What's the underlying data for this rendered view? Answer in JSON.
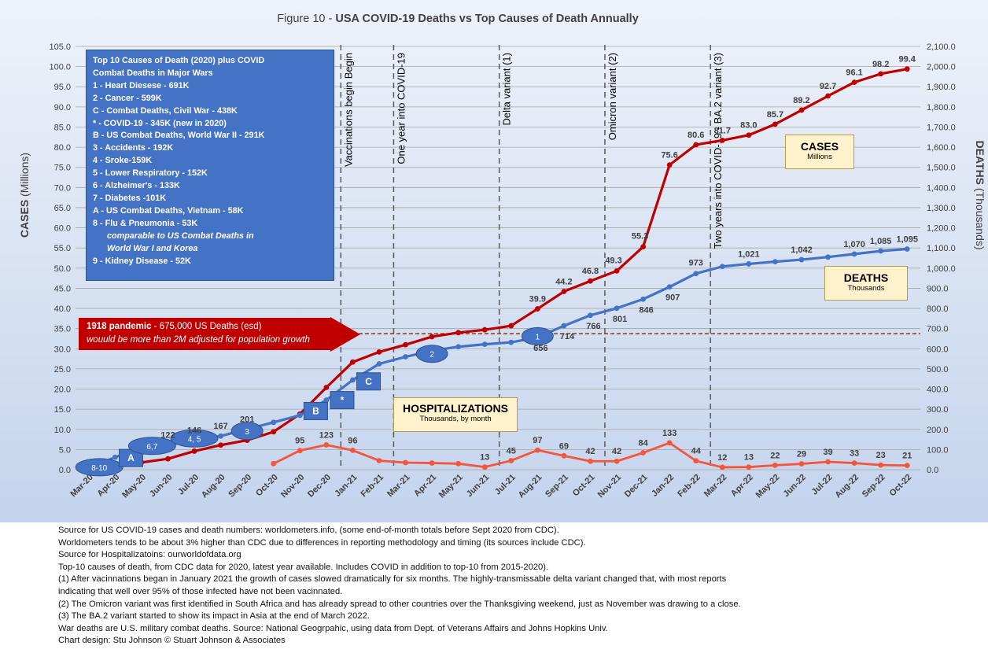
{
  "title_prefix": "Figure 10 - ",
  "title_main": "USA COVID-19 Deaths vs Top Causes of Death Annually",
  "colors": {
    "cases": "#c00000",
    "deaths": "#4472c4",
    "hosp": "#f4563c",
    "grid": "#a6a6a6",
    "bg_top": "#eef2f9",
    "bg_bottom": "#c7d6ee"
  },
  "legend_box": {
    "lines": [
      "Top 10 Causes of Death (2020) plus COVID",
      "Combat Deaths in Major Wars",
      " 1 - Heart Diesese - 691K",
      " 2 - Cancer - 599K",
      " C - Combat Deaths, Civil War - 438K",
      " * - COVID-19 - 345K  (new in 2020)",
      " B - US Combat Deaths, World War II - 291K",
      " 3 - Accidents - 192K",
      " 4 - Sroke-159K",
      " 5 - Lower Respiratory - 152K",
      " 6 - Alzheimer's - 133K",
      " 7 - Diabetes -101K",
      " A - US Combat Deaths, Vietnam - 58K",
      " 8 - Flu & Pneumonia - 53K",
      "comparable to US Combat Deaths in",
      "World War I and Korea",
      " 9 - Kidney Disease - 52K"
    ]
  },
  "pandemic_box": {
    "line1_bold": "1918 pandemic",
    "line1_rest": " - 675,000 US Deaths (esd)",
    "line2": "wouuld be more than 2M adjusted for population growth"
  },
  "callouts": {
    "cases": {
      "title": "CASES",
      "sub": "Millions"
    },
    "deaths": {
      "title": "DEATHS",
      "sub": "Thousands"
    },
    "hosp": {
      "title": "HOSPITALIZATIONS",
      "sub": "Thousands, by month"
    }
  },
  "notes": [
    "Source for US COVID-19 cases and death numbers: worldometers.info, (some end-of-month totals before Sept 2020 from CDC).",
    "Worldometers tends to be about 3% higher than CDC due to differences in reporting methodology and timing (its sources include CDC).",
    "Source for Hospitalizatoins: ourworldofdata.org",
    "Top-10 causes of death, from CDC data for 2020, latest year available.  Includes COVID in addition to top-10 from 2015-2020).",
    "(1) After vacinnations began in January 2021 the growth of cases slowed dramatically for six months. The highly-transmissable delta variant changed that, with most reports",
    "indicating that well over 95% of those infected have not been vacinnated.",
    "(2) The Omicron variant was first identified in South Africa and has already spread to other countries over the Thanksgiving weekend, just as November was drawing to a close.",
    "(3) The BA.2 variant started to show its impact in Asia at the end of March 2022.",
    "War deaths are U.S. military combat deaths.  Source: National Geogrpahic, using data from Dept. of Veterans Affairs and Johns Hopkins Univ.",
    "Chart design: Stu Johnson © Stuart Johnson & Associates"
  ],
  "chart_data": {
    "type": "line",
    "title": "Figure 10 - USA COVID-19 Deaths vs Top Causes of Death Annually",
    "categories": [
      "Mar-20",
      "Apr-20",
      "May-20",
      "Jun-20",
      "Jul-20",
      "Aug-20",
      "Sep-20",
      "Oct-20",
      "Nov-20",
      "Dec-20",
      "Jan-21",
      "Feb-21",
      "Mar-21",
      "Apr-21",
      "May-21",
      "Jun-21",
      "Jul-21",
      "Aug-21",
      "Sep-21",
      "Oct-21",
      "Nov-21",
      "Dec-21",
      "Jan-22",
      "Feb-22",
      "Mar-22",
      "Apr-22",
      "May-22",
      "Jun-22",
      "Jul-22",
      "Aug-22",
      "Sep-22",
      "Oct-22"
    ],
    "y_left": {
      "label_bold": "CASES",
      "label_rest": " (Millions)",
      "min": 0,
      "max": 105,
      "step": 5,
      "ticks": [
        "0.0",
        "5.0",
        "10.0",
        "15.0",
        "20.0",
        "25.0",
        "30.0",
        "35.0",
        "40.0",
        "45.0",
        "50.0",
        "55.0",
        "60.0",
        "65.0",
        "70.0",
        "75.0",
        "80.0",
        "85.0",
        "90.0",
        "95.0",
        "100.0",
        "105.0"
      ]
    },
    "y_right": {
      "label_bold": "DEATHS",
      "label_rest": " (Thousands)",
      "min": 0,
      "max": 2100,
      "step": 100,
      "ticks": [
        "0.0",
        "100.0",
        "200.0",
        "300.0",
        "400.0",
        "500.0",
        "600.0",
        "700.0",
        "800.0",
        "900.0",
        "1,000.0",
        "1,100.0",
        "1,200.0",
        "1,300.0",
        "1,400.0",
        "1,500.0",
        "1,600.0",
        "1,700.0",
        "1,800.0",
        "1,900.0",
        "2,000.0",
        "2,100.0"
      ]
    },
    "series": [
      {
        "name": "CASES",
        "axis": "left",
        "values": [
          0.2,
          1.1,
          1.8,
          2.7,
          4.6,
          6.1,
          7.3,
          9.4,
          13.8,
          20.4,
          26.7,
          29.2,
          31.0,
          33.0,
          34.0,
          34.7,
          35.7,
          39.9,
          44.2,
          46.8,
          49.3,
          55.3,
          75.6,
          80.6,
          81.7,
          83.0,
          85.7,
          89.2,
          92.7,
          96.1,
          98.2,
          99.4
        ],
        "labels": [
          "",
          "",
          "",
          "",
          "",
          "",
          "",
          "",
          "",
          "",
          "",
          "",
          "",
          "",
          "",
          "",
          "",
          "39.9",
          "44.2",
          "46.8",
          "49.3",
          "55.3",
          "75.6",
          "80.6",
          "81.7",
          "83.0",
          "85.7",
          "89.2",
          "92.7",
          "96.1",
          "98.2",
          "99.4"
        ]
      },
      {
        "name": "DEATHS",
        "axis": "right",
        "values": [
          6,
          62,
          108,
          122,
          146,
          167,
          201,
          235,
          270,
          345,
          445,
          525,
          560,
          590,
          610,
          622,
          632,
          656,
          714,
          766,
          801,
          846,
          907,
          973,
          1008,
          1021,
          1032,
          1042,
          1055,
          1070,
          1085,
          1095
        ],
        "labels": [
          "",
          "",
          "",
          "122",
          "146",
          "167",
          "201",
          "",
          "",
          "",
          "",
          "",
          "",
          "",
          "",
          "",
          "",
          "656",
          "714",
          "766",
          "801",
          "846",
          "907",
          "973",
          "",
          "1,021",
          "",
          "1,042",
          "",
          "1,070",
          "1,085",
          "1,095"
        ]
      },
      {
        "name": "HOSPITALIZATIONS",
        "axis": "right",
        "values": [
          null,
          null,
          null,
          null,
          null,
          null,
          null,
          30,
          95,
          123,
          96,
          45,
          35,
          33,
          30,
          13,
          45,
          97,
          69,
          42,
          42,
          84,
          133,
          44,
          12,
          13,
          22,
          29,
          39,
          33,
          23,
          21
        ],
        "labels": [
          "",
          "",
          "",
          "",
          "",
          "",
          "",
          "",
          "95",
          "123",
          "96",
          "",
          "",
          "",
          "",
          "13",
          "45",
          "97",
          "69",
          "42",
          "42",
          "84",
          "133",
          "44",
          "12",
          "13",
          "22",
          "29",
          "39",
          "33",
          "23",
          "21"
        ]
      }
    ],
    "reference_lines": [
      {
        "at": "Jan-21",
        "label": "Vaccinations begin Begin"
      },
      {
        "at": "Mar-21",
        "label": "One year into COVID-19"
      },
      {
        "at": "Jul-21",
        "label": "Delta variant (1)"
      },
      {
        "at": "Nov-21",
        "label": "Omicron variant (2)"
      },
      {
        "at": "Mar-22",
        "label": "Two years into COVID-19 - BA.2 variant (3)"
      }
    ],
    "pandemic_line": {
      "value": 675,
      "axis": "right"
    },
    "markers": [
      {
        "label": "8-10",
        "shape": "ellipse",
        "at": 0.4,
        "value": 12
      },
      {
        "label": "A",
        "shape": "square",
        "at": 1.6,
        "value": 58
      },
      {
        "label": "6,7",
        "shape": "ellipse",
        "at": 2.4,
        "value": 118
      },
      {
        "label": "4, 5",
        "shape": "ellipse",
        "at": 4.0,
        "value": 155
      },
      {
        "label": "3",
        "shape": "ellipse",
        "at": 6.0,
        "value": 192
      },
      {
        "label": "B",
        "shape": "square",
        "at": 8.6,
        "value": 291
      },
      {
        "label": "*",
        "shape": "square",
        "at": 9.6,
        "value": 345
      },
      {
        "label": "C",
        "shape": "square",
        "at": 10.6,
        "value": 438
      },
      {
        "label": "2",
        "shape": "ellipse",
        "at": 13.0,
        "value": 575
      },
      {
        "label": "1",
        "shape": "ellipse",
        "at": 17.0,
        "value": 662
      }
    ]
  }
}
